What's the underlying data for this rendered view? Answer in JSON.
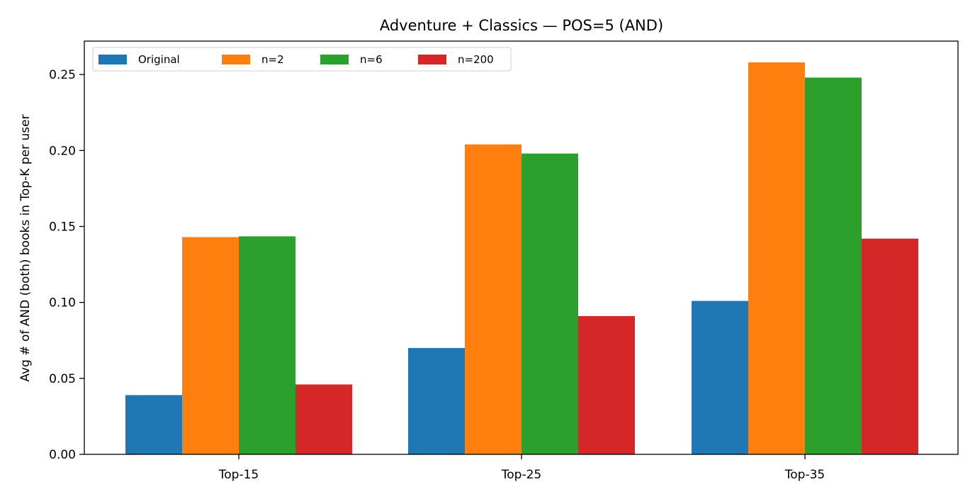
{
  "chart_data": {
    "type": "bar",
    "title": "Adventure + Classics — POS=5 (AND)",
    "xlabel": "",
    "ylabel": "Avg # of AND (both) books in Top-K per user",
    "categories": [
      "Top-15",
      "Top-25",
      "Top-35"
    ],
    "series": [
      {
        "name": "Original",
        "color": "#1f77b4",
        "values": [
          0.039,
          0.07,
          0.101
        ]
      },
      {
        "name": "n=2",
        "color": "#ff7f0e",
        "values": [
          0.143,
          0.204,
          0.258
        ]
      },
      {
        "name": "n=6",
        "color": "#2ca02c",
        "values": [
          0.1435,
          0.198,
          0.248
        ]
      },
      {
        "name": "n=200",
        "color": "#d62728",
        "values": [
          0.046,
          0.091,
          0.142
        ]
      }
    ],
    "ylim": [
      0,
      0.272
    ],
    "yticks": [
      "0.00",
      "0.05",
      "0.10",
      "0.15",
      "0.20",
      "0.25"
    ],
    "grid": false,
    "legend": {
      "placement": "top-left",
      "columns": 4
    }
  }
}
